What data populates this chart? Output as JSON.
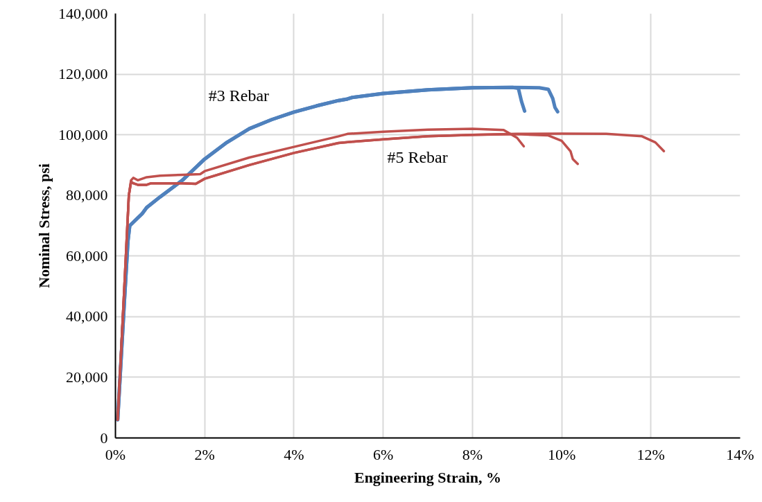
{
  "chart_data": {
    "type": "line",
    "xlabel": "Engineering Strain, %",
    "ylabel": "Nominal Stress, psi",
    "xlim": [
      0,
      14
    ],
    "ylim": [
      0,
      140000
    ],
    "xticks": [
      {
        "value": 0,
        "label": "0%"
      },
      {
        "value": 2,
        "label": "2%"
      },
      {
        "value": 4,
        "label": "4%"
      },
      {
        "value": 6,
        "label": "6%"
      },
      {
        "value": 8,
        "label": "8%"
      },
      {
        "value": 10,
        "label": "10%"
      },
      {
        "value": 12,
        "label": "12%"
      },
      {
        "value": 14,
        "label": "14%"
      }
    ],
    "yticks": [
      {
        "value": 0,
        "label": "0"
      },
      {
        "value": 20000,
        "label": "20,000"
      },
      {
        "value": 40000,
        "label": "40,000"
      },
      {
        "value": 60000,
        "label": "60,000"
      },
      {
        "value": 80000,
        "label": "80,000"
      },
      {
        "value": 100000,
        "label": "100,000"
      },
      {
        "value": 120000,
        "label": "120,000"
      },
      {
        "value": 140000,
        "label": "140,000"
      }
    ],
    "grid": true,
    "marker": "none",
    "line_style": "solid",
    "series": [
      {
        "color": "#4f81bd",
        "x": [
          0.05,
          0.2,
          0.28,
          0.32,
          0.6,
          0.7,
          1,
          1.5,
          2,
          2.5,
          3,
          3.5,
          4,
          4.5,
          5,
          5.2,
          5.3,
          6,
          7,
          8,
          8.9,
          9.03,
          9.1,
          9.17
        ],
        "values": [
          6000,
          45000,
          65000,
          70000,
          74000,
          76000,
          79500,
          85000,
          92000,
          97500,
          102000,
          105000,
          107500,
          109500,
          111300,
          111800,
          112300,
          113600,
          114800,
          115500,
          115600,
          115300,
          111000,
          107800
        ]
      },
      {
        "color": "#4f81bd",
        "x": [
          0.05,
          0.2,
          0.28,
          0.32,
          0.6,
          0.7,
          1,
          1.5,
          2,
          2.5,
          3,
          3.5,
          4,
          4.5,
          5,
          5.2,
          5.3,
          6,
          7,
          8,
          8.9,
          9.5,
          9.7,
          9.8,
          9.85,
          9.91
        ],
        "values": [
          6000,
          45000,
          65000,
          70000,
          74000,
          76000,
          79500,
          85000,
          92000,
          97500,
          102000,
          105000,
          107500,
          109500,
          111300,
          111800,
          112300,
          113600,
          114800,
          115500,
          115600,
          115500,
          115000,
          112000,
          109000,
          107600
        ]
      },
      {
        "color": "#c0504d",
        "x": [
          0.05,
          0.2,
          0.3,
          0.35,
          0.4,
          0.5,
          0.6,
          0.7,
          1,
          1.5,
          1.9,
          2,
          3,
          4,
          5,
          5.2,
          6,
          7,
          8,
          8.7,
          9,
          9.15
        ],
        "values": [
          6000,
          50000,
          80000,
          85000,
          85800,
          85000,
          85500,
          86000,
          86500,
          86800,
          87000,
          88000,
          92500,
          96000,
          99500,
          100300,
          101000,
          101700,
          102000,
          101600,
          99000,
          96200
        ]
      },
      {
        "color": "#c0504d",
        "x": [
          0.05,
          0.2,
          0.3,
          0.35,
          0.4,
          0.5,
          0.7,
          0.8,
          1.5,
          1.8,
          2,
          3,
          4,
          5,
          5.4,
          6,
          7,
          8,
          9,
          9.7,
          10,
          10.2,
          10.25,
          10.36
        ],
        "values": [
          6000,
          50000,
          80000,
          84500,
          84000,
          83500,
          83500,
          84000,
          84000,
          83800,
          85500,
          90000,
          94000,
          97300,
          97800,
          98500,
          99500,
          100000,
          100200,
          99800,
          98000,
          94500,
          92000,
          90400
        ]
      },
      {
        "color": "#c0504d",
        "x": [
          0.05,
          0.2,
          0.3,
          0.35,
          0.4,
          0.5,
          0.7,
          0.8,
          1.5,
          1.8,
          2,
          3,
          4,
          5,
          5.4,
          6,
          7,
          8,
          9,
          10,
          11,
          11.8,
          12.1,
          12.29
        ],
        "values": [
          6000,
          50000,
          80000,
          84500,
          84000,
          83500,
          83500,
          84000,
          84000,
          83800,
          85500,
          90000,
          94000,
          97300,
          97800,
          98500,
          99500,
          100000,
          100300,
          100400,
          100300,
          99500,
          97500,
          94600
        ]
      }
    ],
    "annotations": [
      "#3 Rebar",
      "#5 Rebar"
    ]
  }
}
